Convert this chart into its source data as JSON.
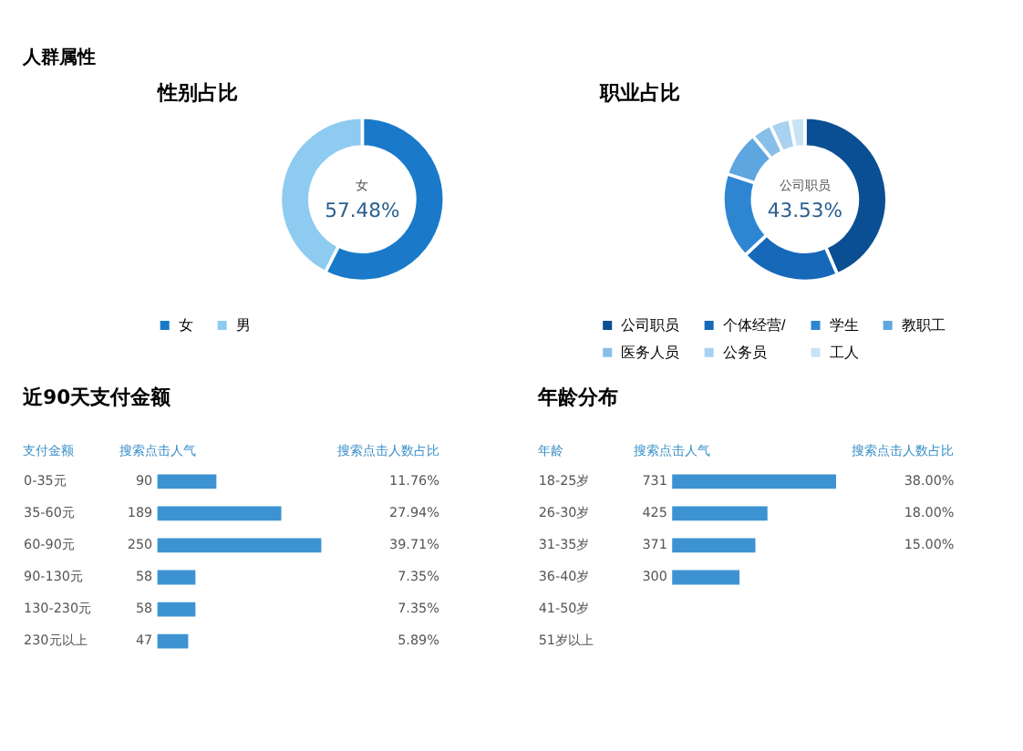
{
  "chart_data": [
    {
      "type": "donut",
      "title": "性别占比",
      "annotations": [
        "人群属性"
      ],
      "categories": [
        "女",
        "男"
      ],
      "values": [
        57.48,
        42.52
      ],
      "colors": [
        "#1a7ac9",
        "#8ecbf0"
      ],
      "value_labels": [
        "57.48%",
        null
      ],
      "legend": "bottom"
    },
    {
      "type": "donut",
      "title": "职业占比",
      "categories": [
        "公司职员",
        "个体经营/",
        "学生",
        "教职工",
        "医务人员",
        "公务员",
        "工人"
      ],
      "values": [
        43.53,
        19.5,
        17,
        9,
        4,
        4,
        2.97
      ],
      "colors": [
        "#0a4f94",
        "#1668b8",
        "#2e86d3",
        "#5ea6e0",
        "#87bfe9",
        "#a9d2f1",
        "#c9e3f6"
      ],
      "value_labels": [
        "43.53%",
        null,
        null,
        null,
        null,
        null,
        null
      ],
      "legend": "bottom"
    },
    {
      "type": "bar",
      "orientation": "horizontal",
      "title": "近90天支付金额",
      "ylabel": "支付金额",
      "xlabel": "搜索点击人气",
      "categories": [
        "0-35元",
        "35-60元",
        "60-90元",
        "90-130元",
        "130-230元",
        "230元以上"
      ],
      "values": [
        90,
        189,
        250,
        58,
        58,
        47
      ],
      "color": "#3d93d1",
      "data_labels": true,
      "annotations": [
        "搜索点击人数占比",
        "11.76%",
        "27.94%",
        "39.71%",
        "7.35%",
        "7.35%",
        "5.89%"
      ]
    },
    {
      "type": "bar",
      "orientation": "horizontal",
      "title": "年龄分布",
      "ylabel": "年龄",
      "xlabel": "搜索点击人气",
      "categories": [
        "18-25岁",
        "26-30岁",
        "31-35岁",
        "36-40岁",
        "41-50岁",
        "51岁以上"
      ],
      "values": [
        731,
        425,
        371,
        300,
        null,
        null
      ],
      "color": "#3d93d1",
      "data_labels": true,
      "annotations": [
        "搜索点击人数占比",
        "38.00%",
        "18.00%",
        "15.00%"
      ]
    }
  ]
}
